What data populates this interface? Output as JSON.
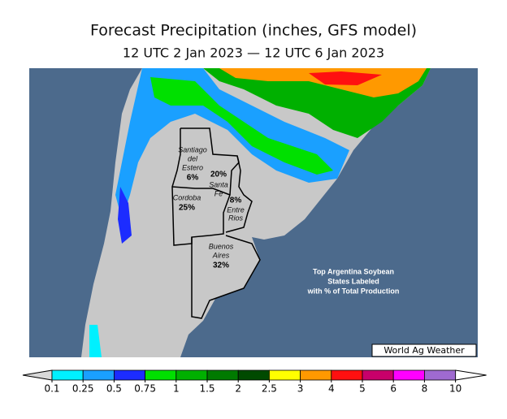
{
  "header": {
    "title": "Forecast Precipitation (inches, GFS model)",
    "subtitle": "12 UTC 2 Jan 2023 — 12 UTC 6 Jan 2023"
  },
  "provinces": [
    {
      "lines": [
        "Santiago",
        "del",
        "Estero"
      ],
      "share": "6%"
    },
    {
      "lines": [
        "Santa",
        "Fe"
      ],
      "share": "20%"
    },
    {
      "lines": [
        "Cordoba"
      ],
      "share": "25%"
    },
    {
      "lines": [
        "Entre",
        "Rios"
      ],
      "share": "8%"
    },
    {
      "lines": [
        "Buenos",
        "Aires"
      ],
      "share": "32%"
    }
  ],
  "note": [
    "Top Argentina Soybean",
    "States Labeled",
    "with % of Total Production"
  ],
  "credit": "World Ag Weather",
  "colorbar": {
    "ticks": [
      0.1,
      0.25,
      0.5,
      0.75,
      1,
      1.5,
      2,
      2.5,
      3,
      4,
      5,
      6,
      8,
      10
    ],
    "under_color": "#d8d8d8",
    "over_color": "#ffffff",
    "colors": [
      "#00f0ff",
      "#1aa0ff",
      "#1c2cff",
      "#00e000",
      "#00b000",
      "#007a00",
      "#004a00",
      "#ffff00",
      "#ff9900",
      "#ff1010",
      "#c8006a",
      "#ff00ff",
      "#9f6ad0"
    ]
  }
}
